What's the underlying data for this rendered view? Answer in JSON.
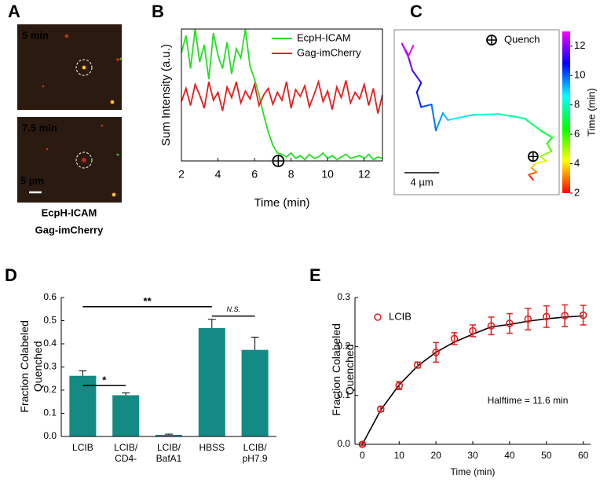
{
  "image_panel": {
    "panel_label": "A",
    "frames": [
      "5 min",
      "7.5 min"
    ],
    "scale_bar": "5 µm",
    "channels": [
      {
        "name": "EcpH-ICAM",
        "color": "#2ec52e"
      },
      {
        "name": "Gag-imCherry",
        "color": "#e8262a"
      }
    ]
  },
  "chart_data": [
    {
      "type": "line",
      "panel_label": "B",
      "xlabel": "Time (min)",
      "ylabel": "Sum Intensity (a.u.)",
      "xlim": [
        2,
        13
      ],
      "xticks": [
        2,
        4,
        6,
        8,
        10,
        12
      ],
      "ylim": [
        0,
        1
      ],
      "x": [
        2,
        2.25,
        2.5,
        2.75,
        3,
        3.25,
        3.5,
        3.75,
        4,
        4.25,
        4.5,
        4.75,
        5,
        5.25,
        5.5,
        5.75,
        6,
        6.25,
        6.5,
        6.75,
        7,
        7.25,
        7.5,
        7.75,
        8,
        8.25,
        8.5,
        8.75,
        9,
        9.25,
        9.5,
        9.75,
        10,
        10.25,
        10.5,
        10.75,
        11,
        11.25,
        11.5,
        11.75,
        12,
        12.25,
        12.5,
        12.75,
        13
      ],
      "series": [
        {
          "name": "EcpH-ICAM",
          "color": "#22e022",
          "values": [
            0.82,
            0.95,
            0.7,
            1.0,
            0.75,
            0.88,
            0.62,
            0.97,
            0.8,
            0.7,
            0.9,
            0.66,
            0.85,
            0.78,
            1.0,
            0.72,
            0.62,
            0.5,
            0.35,
            0.22,
            0.12,
            0.06,
            0.05,
            0.03,
            0.06,
            0.02,
            0.04,
            0.01,
            0.05,
            0.02,
            0.03,
            0.06,
            0.02,
            0.04,
            0.01,
            0.03,
            0.05,
            0.02,
            0.03,
            0.04,
            0.02,
            0.05,
            0.01,
            0.03,
            0.02
          ]
        },
        {
          "name": "Gag-imCherry",
          "color": "#e81c1c",
          "values": [
            0.45,
            0.55,
            0.42,
            0.58,
            0.5,
            0.4,
            0.6,
            0.46,
            0.52,
            0.38,
            0.56,
            0.48,
            0.6,
            0.44,
            0.53,
            0.47,
            0.58,
            0.42,
            0.5,
            0.55,
            0.43,
            0.52,
            0.46,
            0.6,
            0.4,
            0.54,
            0.49,
            0.57,
            0.41,
            0.5,
            0.6,
            0.45,
            0.53,
            0.39,
            0.56,
            0.48,
            0.61,
            0.44,
            0.52,
            0.47,
            0.58,
            0.42,
            0.55,
            0.36,
            0.5
          ]
        }
      ],
      "quench": {
        "x": 7.3,
        "y": 0
      }
    },
    {
      "type": "trajectory",
      "panel_label": "C",
      "xlim": [
        0,
        19
      ],
      "ylim": [
        0,
        19
      ],
      "x": [
        16.0,
        15.5,
        16.4,
        15.8,
        16.3,
        17.5,
        16.8,
        18.1,
        17.6,
        18.2,
        17.0,
        15.0,
        12.0,
        9.0,
        6.2,
        5.6,
        4.8,
        4.3,
        3.1,
        2.6,
        3.1,
        2.1,
        1.5,
        0.9,
        1.6,
        2.2
      ],
      "y": [
        1.7,
        2.3,
        2.6,
        3.1,
        3.6,
        3.9,
        4.4,
        5.0,
        5.9,
        6.6,
        7.3,
        8.8,
        9.3,
        9.2,
        8.6,
        9.4,
        7.4,
        10.4,
        10.1,
        11.8,
        12.9,
        14.3,
        16.3,
        17.4,
        15.9,
        17.2
      ],
      "t": [
        2,
        2.5,
        3,
        3.5,
        4,
        4.5,
        5,
        5.5,
        6,
        6.5,
        7,
        7.5,
        8,
        8.5,
        9,
        9.3,
        9.6,
        10,
        10.3,
        10.7,
        11,
        11.5,
        12,
        12.4,
        12.7,
        13
      ],
      "clim": [
        2,
        13
      ],
      "cticks": [
        2,
        4,
        6,
        8,
        10,
        12
      ],
      "colorbar_label": "Time (min)",
      "colormap": [
        "#ff0000",
        "#ffff00",
        "#00ff00",
        "#00ffff",
        "#0000ff",
        "#ff00ff"
      ],
      "quench": {
        "x": 16.0,
        "y": 4.4,
        "label": "Quench"
      },
      "scale_bar": {
        "length": 4,
        "label": "4 µm"
      }
    },
    {
      "type": "bar",
      "panel_label": "D",
      "ylabel": "Fraction Colabeled\nQuenched",
      "categories": [
        "LCIB",
        "LCIB/\nCD4-",
        "LCIB/\nBafA1",
        "HBSS",
        "LCIB/\npH7.9"
      ],
      "values": [
        0.262,
        0.178,
        0.007,
        0.468,
        0.374
      ],
      "errors": [
        0.022,
        0.01,
        0.003,
        0.038,
        0.055
      ],
      "color": "#148a84",
      "ylim": [
        0,
        0.6
      ],
      "yticks": [
        {
          "value": 0,
          "label": "0.0"
        },
        0.1,
        0.2,
        0.3,
        0.4,
        0.5,
        0.6
      ],
      "significance": [
        {
          "label": "*",
          "between": [
            0,
            1
          ],
          "y": 0.22
        },
        {
          "label": "**",
          "between": [
            0,
            3
          ],
          "y": 0.56
        },
        {
          "label": "N.S.",
          "between": [
            3,
            4
          ],
          "y": 0.52
        }
      ]
    },
    {
      "type": "scatter",
      "panel_label": "E",
      "xlabel": "Time (min)",
      "ylabel": "Fraction Colabeled\nQuenched",
      "x": [
        0,
        5,
        10,
        15,
        20,
        25,
        30,
        35,
        40,
        45,
        50,
        55,
        60
      ],
      "series": [
        {
          "name": "LCIB",
          "color": "#e02020",
          "values": [
            0,
            0.072,
            0.12,
            0.162,
            0.188,
            0.216,
            0.232,
            0.242,
            0.247,
            0.256,
            0.261,
            0.263,
            0.264
          ],
          "errors": [
            0.003,
            0.005,
            0.008,
            0.006,
            0.02,
            0.012,
            0.012,
            0.018,
            0.02,
            0.022,
            0.022,
            0.022,
            0.02
          ]
        }
      ],
      "fit": {
        "color": "#000000",
        "x": [
          0,
          5,
          10,
          15,
          20,
          25,
          30,
          35,
          40,
          45,
          50,
          55,
          60
        ],
        "values": [
          0,
          0.07,
          0.1215,
          0.16,
          0.188,
          0.209,
          0.225,
          0.24,
          0.245,
          0.2517,
          0.2564,
          0.26,
          0.2625
        ]
      },
      "annotation": "Halftime = 11.6 min",
      "xlim": [
        -2,
        62
      ],
      "xticks": [
        0,
        10,
        20,
        30,
        40,
        50,
        60
      ],
      "ylim": [
        0,
        0.3
      ],
      "yticks": [
        {
          "value": 0,
          "label": "0.0"
        },
        0.1,
        0.2,
        0.3
      ]
    }
  ]
}
